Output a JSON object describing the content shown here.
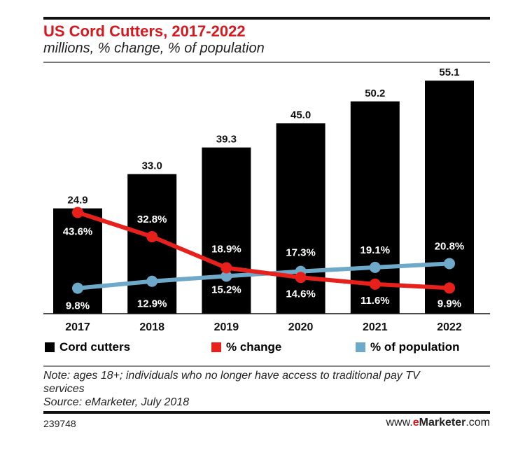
{
  "chart_data": {
    "type": "bar",
    "title": "US Cord Cutters, 2017-2022",
    "subtitle": "millions, % change, % of population",
    "categories": [
      "2017",
      "2018",
      "2019",
      "2020",
      "2021",
      "2022"
    ],
    "series": [
      {
        "name": "Cord cutters",
        "type": "bar",
        "color": "#000000",
        "values": [
          24.9,
          33.0,
          39.3,
          45.0,
          50.2,
          55.1
        ],
        "labels": [
          "24.9",
          "33.0",
          "39.3",
          "45.0",
          "50.2",
          "55.1"
        ]
      },
      {
        "name": "% change",
        "type": "line",
        "color": "#e8201c",
        "values": [
          43.6,
          32.8,
          18.9,
          14.6,
          11.6,
          9.9
        ],
        "labels": [
          "43.6%",
          "32.8%",
          "18.9%",
          "14.6%",
          "11.6%",
          "9.9%"
        ]
      },
      {
        "name": "% of population",
        "type": "line",
        "color": "#6fa9c9",
        "values": [
          9.8,
          12.9,
          15.2,
          17.3,
          19.1,
          20.8
        ],
        "labels": [
          "9.8%",
          "12.9%",
          "15.2%",
          "17.3%",
          "19.1%",
          "20.8%"
        ]
      }
    ],
    "legend": [
      "Cord cutters",
      "% change",
      "% of population"
    ],
    "legend_position": "bottom"
  },
  "note": "Note: ages 18+; individuals who no longer have access to traditional pay TV",
  "note2": "services",
  "source": "Source: eMarketer, July 2018",
  "chart_id": "239748",
  "site_prefix": "www.",
  "site_brand_e": "e",
  "site_brand": "Marketer",
  "site_suffix": ".com"
}
